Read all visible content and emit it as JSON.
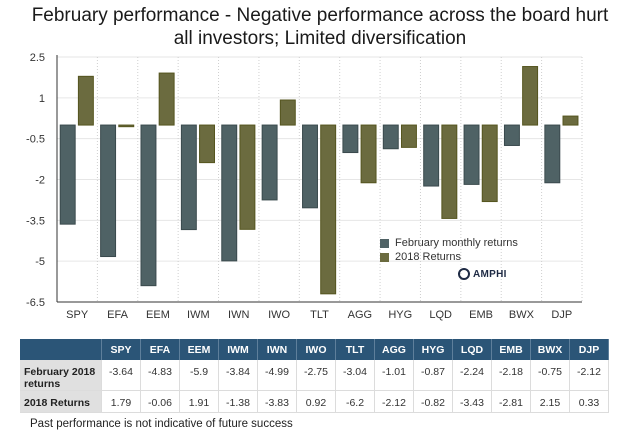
{
  "title_line1": "February performance - Negative performance across the board hurt",
  "title_line2": "all investors; Limited diversification",
  "colors": {
    "february": "#4f6265",
    "returns2018": "#6b6b3f",
    "table_header": "#2b5577"
  },
  "chart_data": {
    "type": "bar",
    "title": "February performance - Negative performance across the board hurt all investors; Limited diversification",
    "xlabel": "",
    "ylabel": "",
    "categories": [
      "SPY",
      "EFA",
      "EEM",
      "IWM",
      "IWN",
      "IWO",
      "TLT",
      "AGG",
      "HYG",
      "LQD",
      "EMB",
      "BWX",
      "DJP"
    ],
    "series": [
      {
        "name": "February monthly returns",
        "values": [
          -3.64,
          -4.83,
          -5.9,
          -3.84,
          -4.99,
          -2.75,
          -3.04,
          -1.01,
          -0.87,
          -2.24,
          -2.18,
          -0.75,
          -2.12
        ]
      },
      {
        "name": "2018 Returns",
        "values": [
          1.79,
          -0.06,
          1.91,
          -1.38,
          -3.83,
          0.92,
          -6.2,
          -2.12,
          -0.82,
          -3.43,
          -2.81,
          2.15,
          0.33
        ]
      }
    ],
    "yticks": [
      2.5,
      1,
      -0.5,
      -2,
      -3.5,
      -5,
      -6.5
    ],
    "ytick_labels": [
      "2.5",
      "1",
      "-0.5",
      "-2",
      "-3.5",
      "-5",
      "-6.5"
    ],
    "ylim": [
      -6.5,
      2.5
    ],
    "grid": true,
    "legend": [
      "February monthly returns",
      "2018 Returns"
    ],
    "legend_position": "lower-right"
  },
  "logo": {
    "name": "AMPHI"
  },
  "table": {
    "columns": [
      "SPY",
      "EFA",
      "EEM",
      "IWM",
      "IWN",
      "IWO",
      "TLT",
      "AGG",
      "HYG",
      "LQD",
      "EMB",
      "BWX",
      "DJP"
    ],
    "rows": [
      {
        "label": "February 2018 returns",
        "values": [
          "-3.64",
          "-4.83",
          "-5.9",
          "-3.84",
          "-4.99",
          "-2.75",
          "-3.04",
          "-1.01",
          "-0.87",
          "-2.24",
          "-2.18",
          "-0.75",
          "-2.12"
        ]
      },
      {
        "label": "2018 Returns",
        "values": [
          "1.79",
          "-0.06",
          "1.91",
          "-1.38",
          "-3.83",
          "0.92",
          "-6.2",
          "-2.12",
          "-0.82",
          "-3.43",
          "-2.81",
          "2.15",
          "0.33"
        ]
      }
    ]
  },
  "footnote": "Past performance is not indicative of future success"
}
